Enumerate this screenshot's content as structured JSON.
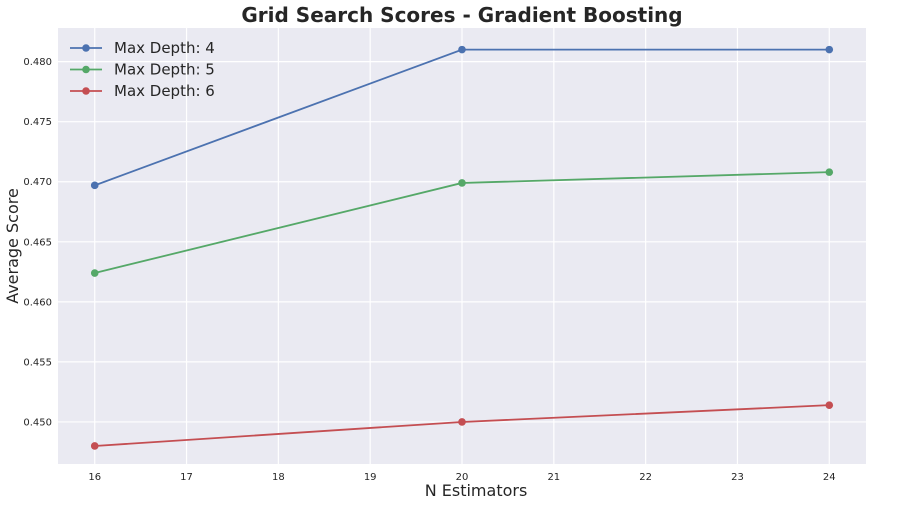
{
  "chart_data": {
    "type": "line",
    "title": "Grid Search Scores - Gradient Boosting",
    "xlabel": "N Estimators",
    "ylabel": "Average Score",
    "x": [
      16,
      20,
      24
    ],
    "xlim": [
      15.6,
      24.4
    ],
    "ylim": [
      0.4465,
      0.4828
    ],
    "xticks": [
      "16",
      "17",
      "18",
      "19",
      "20",
      "21",
      "22",
      "23",
      "24"
    ],
    "yticks": [
      "0.450",
      "0.455",
      "0.460",
      "0.465",
      "0.470",
      "0.475",
      "0.480"
    ],
    "grid": true,
    "legend_position": "top-left",
    "series": [
      {
        "name": "Max Depth: 4",
        "color": "#4c72b0",
        "values": [
          0.4697,
          0.481,
          0.481
        ]
      },
      {
        "name": "Max Depth: 5",
        "color": "#55a868",
        "values": [
          0.4624,
          0.4699,
          0.4708
        ]
      },
      {
        "name": "Max Depth: 6",
        "color": "#c44e52",
        "values": [
          0.448,
          0.45,
          0.4514
        ]
      }
    ]
  }
}
